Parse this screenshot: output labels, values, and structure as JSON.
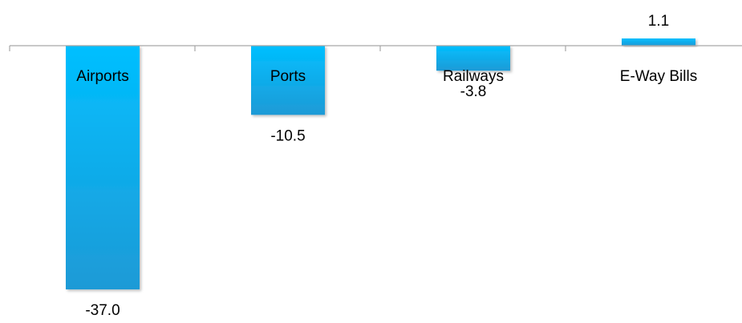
{
  "chart_data": {
    "type": "bar",
    "categories": [
      "Airports",
      "Ports",
      "Railways",
      "E-Way Bills"
    ],
    "values": [
      -37.0,
      -10.5,
      -3.8,
      1.1
    ],
    "value_labels": [
      "-37.0",
      "-10.5",
      "-3.8",
      "1.1"
    ],
    "title": "",
    "xlabel": "",
    "ylabel": "",
    "ylim": [
      -37.0,
      1.1
    ],
    "grid": false,
    "legend": "none",
    "colors": {
      "bar_top": "#00BFFF",
      "bar_bottom": "#1E9AD6",
      "axis": "#A6A6A6"
    }
  }
}
